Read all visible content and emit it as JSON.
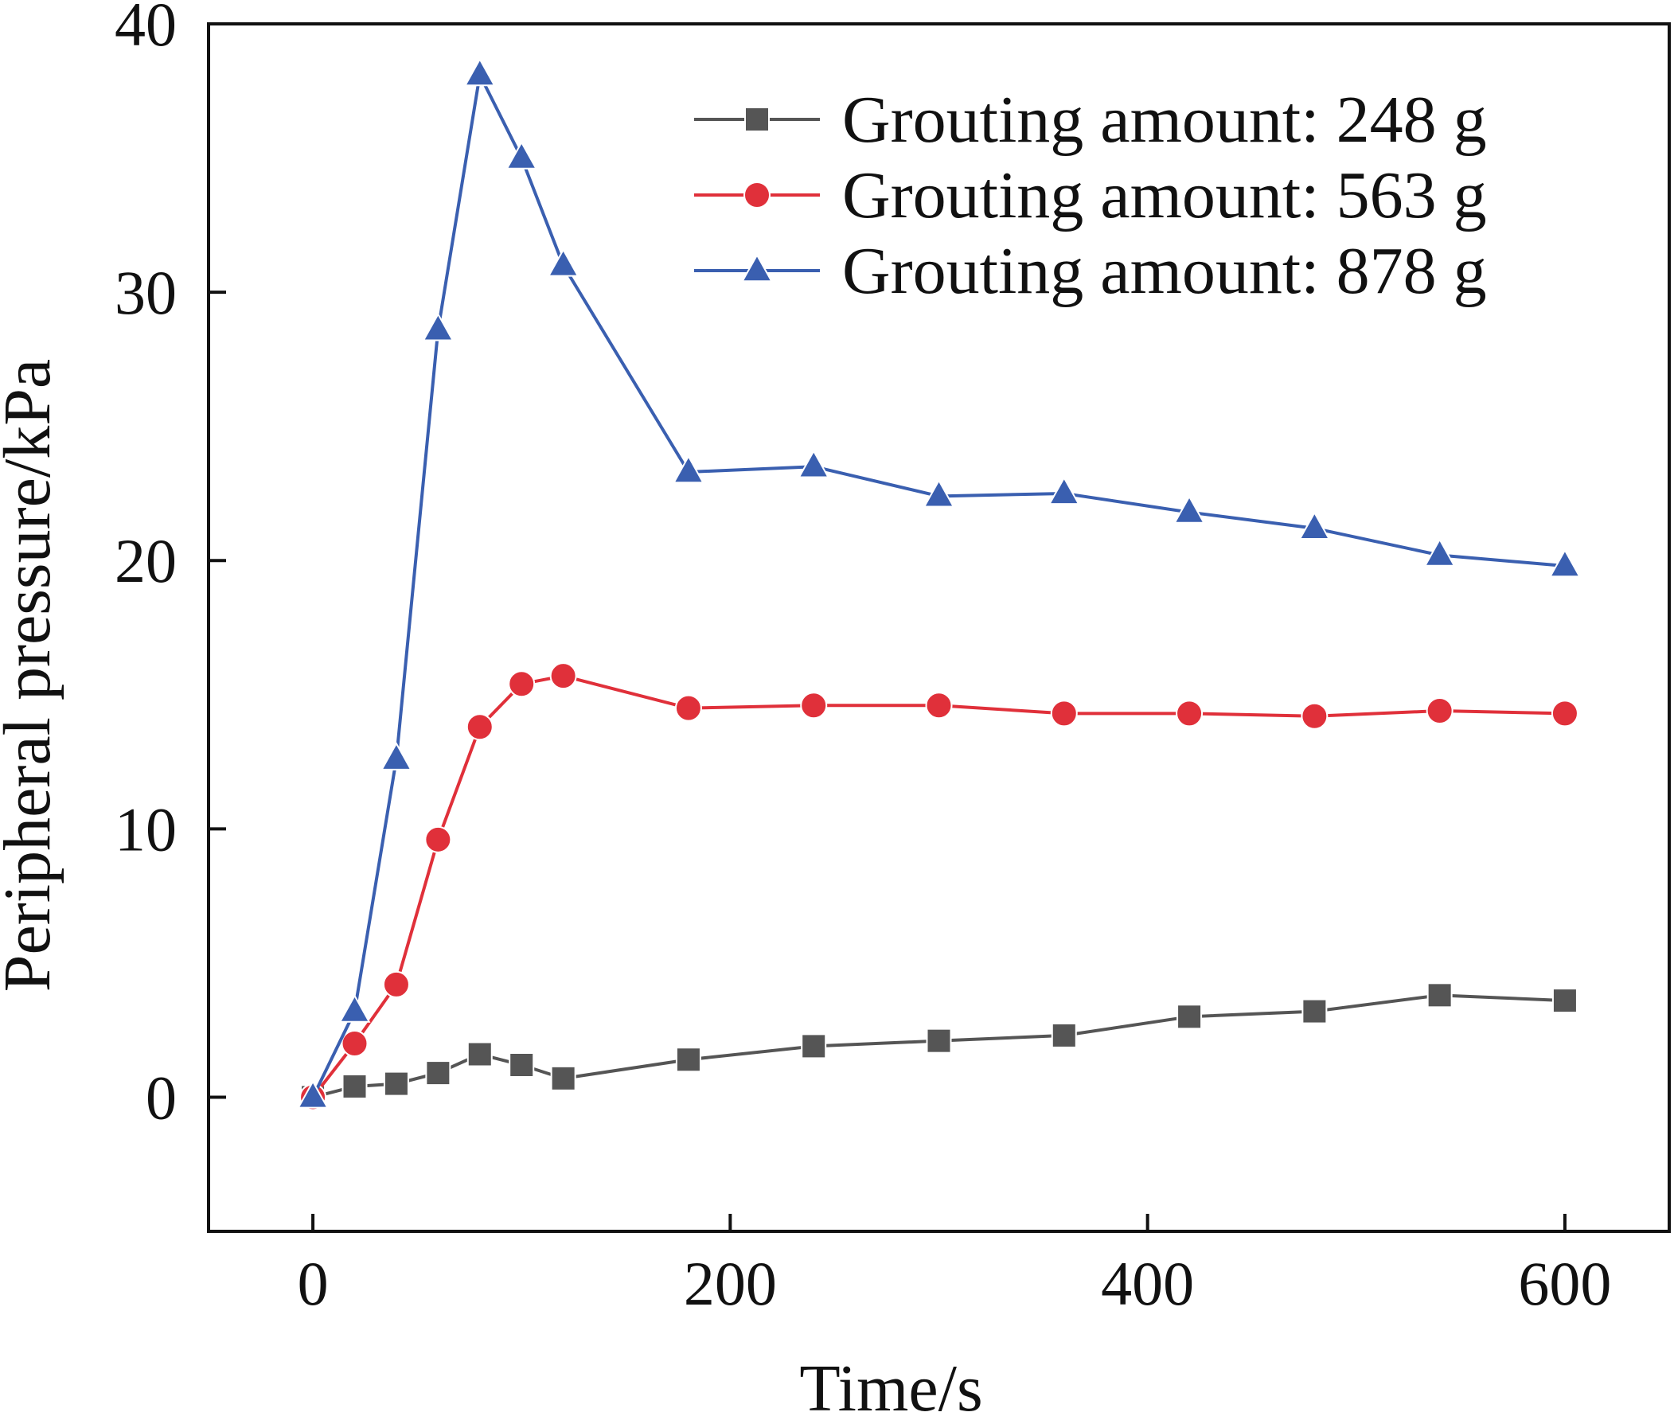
{
  "chart_data": {
    "type": "line",
    "title": "",
    "xlabel": "Time/s",
    "ylabel": "Peripheral pressure/kPa",
    "xlim": [
      -50,
      650
    ],
    "ylim": [
      -5,
      40
    ],
    "x_ticks": [
      0,
      200,
      400,
      600
    ],
    "y_ticks": [
      0,
      10,
      20,
      30,
      40
    ],
    "grid": false,
    "legend_position": "top-right",
    "x": [
      0,
      20,
      40,
      60,
      80,
      100,
      120,
      180,
      240,
      300,
      360,
      420,
      480,
      540,
      600
    ],
    "series": [
      {
        "name": "Grouting amount: 248 g",
        "color": "#555555",
        "marker": "square",
        "values": [
          0,
          0.4,
          0.5,
          0.9,
          1.6,
          1.2,
          0.7,
          1.4,
          1.9,
          2.1,
          2.3,
          3.0,
          3.2,
          3.8,
          3.6
        ]
      },
      {
        "name": "Grouting amount: 563 g",
        "color": "#e0303a",
        "marker": "circle",
        "values": [
          0,
          2.0,
          4.2,
          9.6,
          13.8,
          15.4,
          15.7,
          14.5,
          14.6,
          14.6,
          14.3,
          14.3,
          14.2,
          14.4,
          14.3
        ]
      },
      {
        "name": "Grouting amount: 878 g",
        "color": "#3a5fb0",
        "marker": "triangle",
        "values": [
          0,
          3.2,
          12.6,
          28.6,
          38.1,
          35.0,
          31.0,
          23.3,
          23.5,
          22.4,
          22.5,
          21.8,
          21.2,
          20.2,
          19.8
        ]
      }
    ]
  }
}
